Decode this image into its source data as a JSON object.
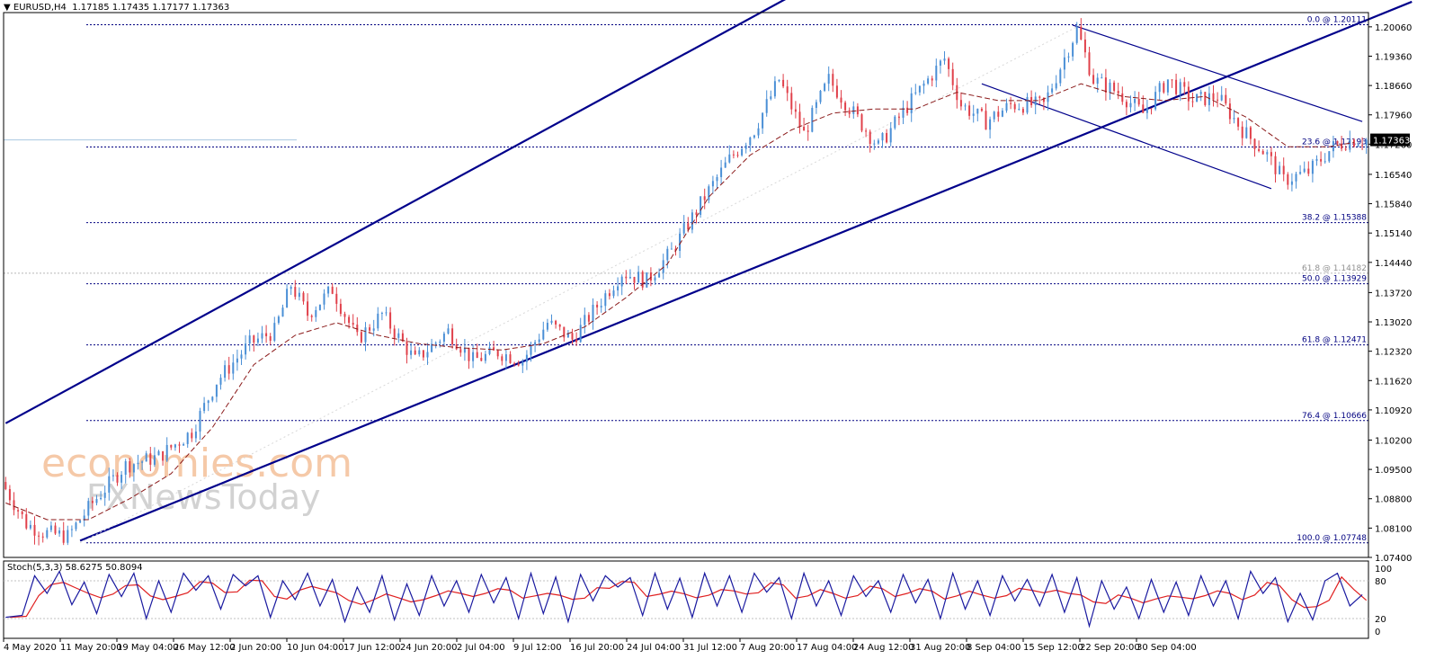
{
  "header": {
    "arrow": "▼",
    "symbol": "EURUSD,H4",
    "open": "1.17185",
    "high": "1.17435",
    "low": "1.17177",
    "close": "1.17363"
  },
  "stochastic": {
    "label": "Stoch(5,3,3)",
    "main_value": "58.6275",
    "signal_value": "50.8094",
    "scale_labels": [
      "100",
      "80",
      "20",
      "0"
    ]
  },
  "watermark": {
    "line1": "economies.com",
    "line2": "FXNewsToday"
  },
  "colors": {
    "bull": "#4a8fd6",
    "bear": "#e0404a",
    "ma": "#8b1a1a",
    "channel": "#00008b",
    "fib": "#000080",
    "stoch_main": "#1a1aa0",
    "stoch_signal": "#e02020"
  },
  "chart_data": {
    "type": "candlestick",
    "symbol": "EURUSD",
    "timeframe": "H4",
    "ylim": [
      1.074,
      1.204
    ],
    "y_ticks": [
      "1.20060",
      "1.19360",
      "1.18660",
      "1.17960",
      "1.17260",
      "1.16540",
      "1.15840",
      "1.15140",
      "1.14440",
      "1.13720",
      "1.13020",
      "1.12320",
      "1.11620",
      "1.10920",
      "1.10200",
      "1.09500",
      "1.08800",
      "1.08100",
      "1.07400"
    ],
    "x_ticks": [
      "4 May 2020",
      "11 May 20:00",
      "19 May 04:00",
      "26 May 12:00",
      "2 Jun 20:00",
      "10 Jun 04:00",
      "17 Jun 12:00",
      "24 Jun 20:00",
      "2 Jul 04:00",
      "9 Jul 12:00",
      "16 Jul 20:00",
      "24 Jul 04:00",
      "31 Jul 12:00",
      "7 Aug 20:00",
      "17 Aug 04:00",
      "24 Aug 12:00",
      "31 Aug 20:00",
      "8 Sep 04:00",
      "15 Sep 12:00",
      "22 Sep 20:00",
      "30 Sep 04:00"
    ],
    "current_price": "1.17363",
    "path_points": [
      [
        0,
        1.092
      ],
      [
        6,
        1.082
      ],
      [
        10,
        1.08
      ],
      [
        16,
        1.079
      ],
      [
        22,
        1.087
      ],
      [
        30,
        1.096
      ],
      [
        38,
        1.098
      ],
      [
        46,
        1.104
      ],
      [
        52,
        1.116
      ],
      [
        60,
        1.125
      ],
      [
        66,
        1.128
      ],
      [
        70,
        1.139
      ],
      [
        74,
        1.132
      ],
      [
        80,
        1.138
      ],
      [
        86,
        1.126
      ],
      [
        92,
        1.132
      ],
      [
        100,
        1.121
      ],
      [
        108,
        1.128
      ],
      [
        114,
        1.121
      ],
      [
        120,
        1.123
      ],
      [
        126,
        1.121
      ],
      [
        132,
        1.13
      ],
      [
        138,
        1.126
      ],
      [
        144,
        1.134
      ],
      [
        150,
        1.142
      ],
      [
        156,
        1.14
      ],
      [
        162,
        1.147
      ],
      [
        170,
        1.16
      ],
      [
        176,
        1.169
      ],
      [
        182,
        1.176
      ],
      [
        188,
        1.188
      ],
      [
        194,
        1.175
      ],
      [
        200,
        1.188
      ],
      [
        206,
        1.18
      ],
      [
        212,
        1.172
      ],
      [
        220,
        1.183
      ],
      [
        228,
        1.193
      ],
      [
        232,
        1.182
      ],
      [
        238,
        1.178
      ],
      [
        244,
        1.182
      ],
      [
        252,
        1.182
      ],
      [
        260,
        1.2
      ],
      [
        264,
        1.188
      ],
      [
        270,
        1.185
      ],
      [
        276,
        1.18
      ],
      [
        282,
        1.188
      ],
      [
        288,
        1.183
      ],
      [
        294,
        1.184
      ],
      [
        300,
        1.176
      ],
      [
        306,
        1.17
      ],
      [
        310,
        1.164
      ],
      [
        316,
        1.166
      ],
      [
        322,
        1.172
      ],
      [
        326,
        1.1736
      ]
    ],
    "moving_average_points": [
      [
        0,
        1.087
      ],
      [
        10,
        1.083
      ],
      [
        20,
        1.083
      ],
      [
        30,
        1.088
      ],
      [
        40,
        1.094
      ],
      [
        50,
        1.105
      ],
      [
        60,
        1.12
      ],
      [
        70,
        1.127
      ],
      [
        80,
        1.13
      ],
      [
        90,
        1.127
      ],
      [
        100,
        1.125
      ],
      [
        110,
        1.124
      ],
      [
        120,
        1.1235
      ],
      [
        130,
        1.125
      ],
      [
        140,
        1.129
      ],
      [
        150,
        1.136
      ],
      [
        160,
        1.144
      ],
      [
        170,
        1.16
      ],
      [
        180,
        1.17
      ],
      [
        190,
        1.176
      ],
      [
        200,
        1.18
      ],
      [
        210,
        1.181
      ],
      [
        220,
        1.181
      ],
      [
        230,
        1.185
      ],
      [
        240,
        1.183
      ],
      [
        250,
        1.183
      ],
      [
        260,
        1.187
      ],
      [
        270,
        1.184
      ],
      [
        280,
        1.183
      ],
      [
        290,
        1.184
      ],
      [
        300,
        1.179
      ],
      [
        310,
        1.172
      ],
      [
        320,
        1.172
      ],
      [
        326,
        1.173
      ]
    ],
    "fibonacci_upper": [
      {
        "label": "0.0 @ 1.20111",
        "price": 1.20111
      },
      {
        "label": "23.6 @ 1.17193",
        "price": 1.17193
      },
      {
        "label": "38.2 @ 1.15388",
        "price": 1.15388
      },
      {
        "label": "50.0 @ 1.13929",
        "price": 1.13929
      },
      {
        "label": "61.8 @ 1.12471",
        "price": 1.12471
      },
      {
        "label": "76.4 @ 1.10666",
        "price": 1.10666
      },
      {
        "label": "100.0 @ 1.07748",
        "price": 1.07748
      }
    ],
    "fibonacci_extra": {
      "label": "61.8 @ 1.14182",
      "price": 1.14182
    },
    "rising_channel": {
      "lower": [
        [
          18,
          1.078
        ],
        [
          326,
          1.201
        ]
      ],
      "upper": [
        [
          0,
          1.106
        ],
        [
          190,
          1.208
        ]
      ]
    },
    "falling_channel": {
      "upper": [
        [
          258,
          1.201
        ],
        [
          328,
          1.178
        ]
      ],
      "lower": [
        [
          236,
          1.187
        ],
        [
          306,
          1.162
        ]
      ]
    },
    "stochastic_points": [
      [
        0,
        22
      ],
      [
        4,
        25
      ],
      [
        7,
        88
      ],
      [
        10,
        60
      ],
      [
        13,
        95
      ],
      [
        16,
        42
      ],
      [
        19,
        78
      ],
      [
        22,
        28
      ],
      [
        25,
        90
      ],
      [
        28,
        55
      ],
      [
        31,
        92
      ],
      [
        34,
        20
      ],
      [
        37,
        80
      ],
      [
        40,
        30
      ],
      [
        43,
        92
      ],
      [
        46,
        65
      ],
      [
        49,
        88
      ],
      [
        52,
        35
      ],
      [
        55,
        90
      ],
      [
        58,
        72
      ],
      [
        61,
        88
      ],
      [
        64,
        22
      ],
      [
        67,
        80
      ],
      [
        70,
        50
      ],
      [
        73,
        92
      ],
      [
        76,
        40
      ],
      [
        79,
        82
      ],
      [
        82,
        15
      ],
      [
        85,
        70
      ],
      [
        88,
        30
      ],
      [
        91,
        88
      ],
      [
        94,
        18
      ],
      [
        97,
        75
      ],
      [
        100,
        25
      ],
      [
        103,
        88
      ],
      [
        106,
        40
      ],
      [
        109,
        80
      ],
      [
        112,
        30
      ],
      [
        115,
        90
      ],
      [
        118,
        45
      ],
      [
        121,
        85
      ],
      [
        124,
        20
      ],
      [
        127,
        92
      ],
      [
        130,
        28
      ],
      [
        133,
        86
      ],
      [
        136,
        15
      ],
      [
        139,
        90
      ],
      [
        142,
        48
      ],
      [
        145,
        88
      ],
      [
        148,
        70
      ],
      [
        151,
        85
      ],
      [
        154,
        25
      ],
      [
        157,
        92
      ],
      [
        160,
        35
      ],
      [
        163,
        84
      ],
      [
        166,
        22
      ],
      [
        169,
        92
      ],
      [
        172,
        40
      ],
      [
        175,
        88
      ],
      [
        178,
        30
      ],
      [
        181,
        92
      ],
      [
        184,
        62
      ],
      [
        187,
        85
      ],
      [
        190,
        20
      ],
      [
        193,
        92
      ],
      [
        196,
        40
      ],
      [
        199,
        80
      ],
      [
        202,
        25
      ],
      [
        205,
        88
      ],
      [
        208,
        55
      ],
      [
        211,
        80
      ],
      [
        214,
        30
      ],
      [
        217,
        90
      ],
      [
        220,
        45
      ],
      [
        223,
        82
      ],
      [
        226,
        20
      ],
      [
        229,
        92
      ],
      [
        232,
        35
      ],
      [
        235,
        80
      ],
      [
        238,
        25
      ],
      [
        241,
        88
      ],
      [
        244,
        48
      ],
      [
        247,
        82
      ],
      [
        250,
        40
      ],
      [
        253,
        90
      ],
      [
        256,
        30
      ],
      [
        259,
        85
      ],
      [
        262,
        8
      ],
      [
        265,
        80
      ],
      [
        268,
        35
      ],
      [
        271,
        70
      ],
      [
        274,
        20
      ],
      [
        277,
        82
      ],
      [
        280,
        30
      ],
      [
        283,
        78
      ],
      [
        286,
        25
      ],
      [
        289,
        88
      ],
      [
        292,
        40
      ],
      [
        295,
        80
      ],
      [
        298,
        20
      ],
      [
        301,
        95
      ],
      [
        304,
        60
      ],
      [
        307,
        85
      ],
      [
        310,
        15
      ],
      [
        313,
        60
      ],
      [
        316,
        18
      ],
      [
        319,
        80
      ],
      [
        322,
        92
      ],
      [
        325,
        40
      ],
      [
        328,
        58
      ]
    ]
  }
}
